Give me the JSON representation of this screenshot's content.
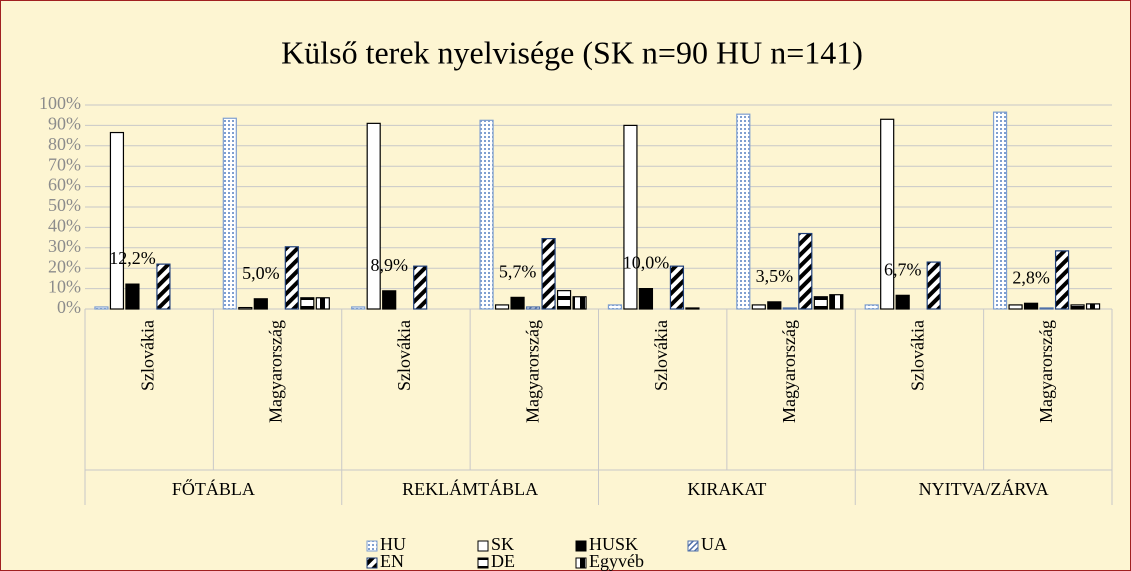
{
  "chart_data": {
    "type": "bar",
    "title": "Külső terek nyelvisége (SK n=90 HU n=141)",
    "groups": [
      "FŐTÁBLA",
      "REKLÁMTÁBLA",
      "KIRAKAT",
      "NYITVA/ZÁRVA"
    ],
    "categories": [
      "Szlovákia",
      "Magyarország",
      "Szlovákia",
      "Magyarország",
      "Szlovákia",
      "Magyarország",
      "Szlovákia",
      "Magyarország"
    ],
    "series": [
      {
        "name": "HU",
        "color": "#7f9fd0",
        "values": [
          1,
          93.5,
          1,
          92.5,
          2,
          95.5,
          2,
          96.5
        ]
      },
      {
        "name": "SK",
        "color": "#ffffff",
        "values": [
          86.5,
          0.7,
          91,
          2,
          90,
          2,
          93,
          2
        ]
      },
      {
        "name": "HUSK",
        "color": "#000000",
        "values": [
          12.2,
          5.0,
          8.9,
          5.7,
          10.0,
          3.5,
          6.7,
          2.8
        ],
        "value_labels": [
          "12,2%",
          "5,0%",
          "8,9%",
          "5,7%",
          "10,0%",
          "3,5%",
          "6,7%",
          "2,8%"
        ]
      },
      {
        "name": "UA",
        "color": "#4f6fa8",
        "values": [
          0,
          0,
          0,
          1,
          0,
          0.5,
          0,
          0.5
        ]
      },
      {
        "name": "EN",
        "color": "#1f3f7a",
        "values": [
          22,
          30.5,
          21,
          34.5,
          21,
          37,
          23,
          28.5
        ]
      },
      {
        "name": "DE",
        "color": "#000000",
        "values": [
          0,
          5.5,
          0,
          9,
          0.5,
          6,
          0,
          2
        ]
      },
      {
        "name": "Egyvéb",
        "color": "#000000",
        "values": [
          0,
          5.5,
          0,
          6,
          0,
          7,
          0,
          2.5
        ]
      }
    ],
    "ylim": [
      0,
      100
    ],
    "yticks": [
      {
        "value": 0,
        "label": "0%"
      },
      {
        "value": 10,
        "label": "10%"
      },
      {
        "value": 20,
        "label": "20%"
      },
      {
        "value": 30,
        "label": "30%"
      },
      {
        "value": 40,
        "label": "40%"
      },
      {
        "value": 50,
        "label": "50%"
      },
      {
        "value": 60,
        "label": "60%"
      },
      {
        "value": 70,
        "label": "70%"
      },
      {
        "value": 80,
        "label": "80%"
      },
      {
        "value": 90,
        "label": "90%"
      },
      {
        "value": 100,
        "label": "100%"
      }
    ],
    "grid": true
  }
}
